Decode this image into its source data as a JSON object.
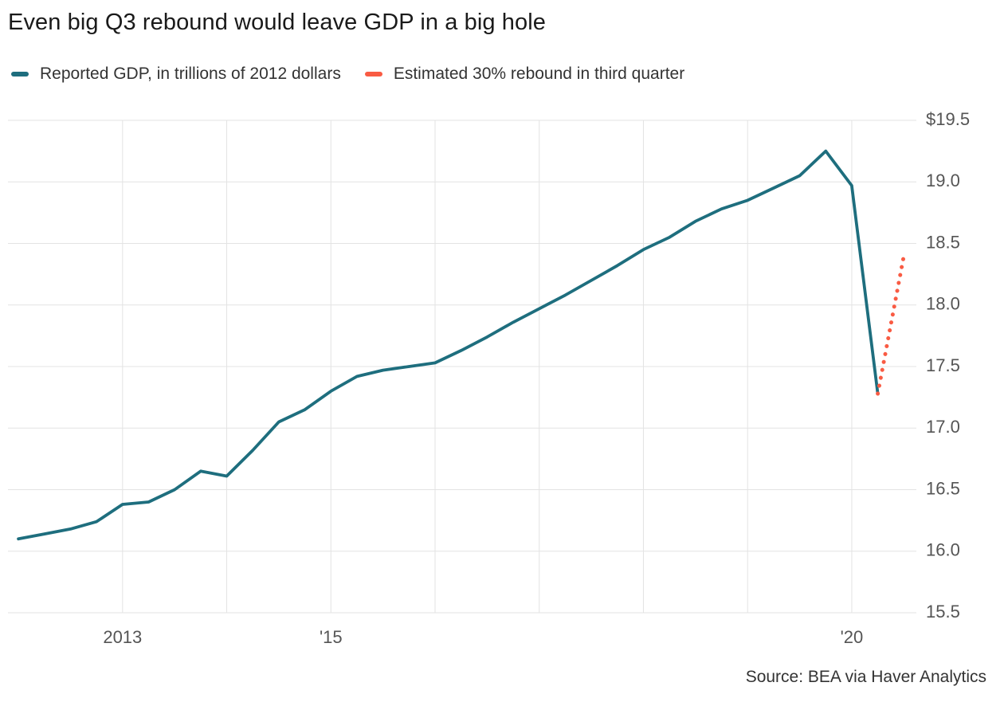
{
  "title": "Even big Q3 rebound would leave GDP in a big hole",
  "legend": [
    {
      "label": "Reported GDP, in trillions of 2012 dollars",
      "color": "#1e6e7e",
      "style": "solid"
    },
    {
      "label": "Estimated 30% rebound in third quarter",
      "color": "#f95b43",
      "style": "dotted"
    }
  ],
  "source": "Source: BEA via Haver Analytics",
  "colors": {
    "reported_line": "#1e6e7e",
    "estimate_line": "#f95b43",
    "gridline": "#e3e3e3",
    "axis_label": "#555555"
  },
  "chart_data": {
    "type": "line",
    "title": "Even big Q3 rebound would leave GDP in a big hole",
    "xlabel": "",
    "ylabel": "GDP, in trillions of 2012 dollars",
    "x_domain": [
      2011.9,
      2020.62
    ],
    "y_domain": [
      15.5,
      19.5
    ],
    "grid": true,
    "legend_position": "top",
    "y_ticks": [
      {
        "value": 19.5,
        "label": "$19.5"
      },
      {
        "value": 19.0,
        "label": "19.0"
      },
      {
        "value": 18.5,
        "label": "18.5"
      },
      {
        "value": 18.0,
        "label": "18.0"
      },
      {
        "value": 17.5,
        "label": "17.5"
      },
      {
        "value": 17.0,
        "label": "17.0"
      },
      {
        "value": 16.5,
        "label": "16.5"
      },
      {
        "value": 16.0,
        "label": "16.0"
      },
      {
        "value": 15.5,
        "label": "15.5"
      }
    ],
    "x_gridlines": [
      2013,
      2014,
      2015,
      2016,
      2017,
      2018,
      2019,
      2020
    ],
    "x_ticks": [
      {
        "value": 2013,
        "label": "2013"
      },
      {
        "value": 2015,
        "label": "'15"
      },
      {
        "value": 2020,
        "label": "'20"
      }
    ],
    "series": [
      {
        "name": "Reported GDP, in trillions of 2012 dollars",
        "color": "#1e6e7e",
        "style": "solid",
        "points": [
          [
            2012.0,
            16.1
          ],
          [
            2012.25,
            16.14
          ],
          [
            2012.5,
            16.18
          ],
          [
            2012.75,
            16.24
          ],
          [
            2013.0,
            16.38
          ],
          [
            2013.25,
            16.4
          ],
          [
            2013.5,
            16.5
          ],
          [
            2013.75,
            16.65
          ],
          [
            2014.0,
            16.61
          ],
          [
            2014.25,
            16.82
          ],
          [
            2014.5,
            17.05
          ],
          [
            2014.75,
            17.15
          ],
          [
            2015.0,
            17.3
          ],
          [
            2015.25,
            17.42
          ],
          [
            2015.5,
            17.47
          ],
          [
            2015.75,
            17.5
          ],
          [
            2016.0,
            17.53
          ],
          [
            2016.25,
            17.63
          ],
          [
            2016.5,
            17.74
          ],
          [
            2016.75,
            17.86
          ],
          [
            2017.0,
            17.97
          ],
          [
            2017.25,
            18.08
          ],
          [
            2017.5,
            18.2
          ],
          [
            2017.75,
            18.32
          ],
          [
            2018.0,
            18.45
          ],
          [
            2018.25,
            18.55
          ],
          [
            2018.5,
            18.68
          ],
          [
            2018.75,
            18.78
          ],
          [
            2019.0,
            18.85
          ],
          [
            2019.25,
            18.95
          ],
          [
            2019.5,
            19.05
          ],
          [
            2019.75,
            19.25
          ],
          [
            2020.0,
            18.97
          ],
          [
            2020.25,
            17.28
          ]
        ]
      },
      {
        "name": "Estimated 30% rebound in third quarter",
        "color": "#f95b43",
        "style": "dotted",
        "points": [
          [
            2020.25,
            17.28
          ],
          [
            2020.5,
            18.4
          ]
        ]
      }
    ]
  }
}
